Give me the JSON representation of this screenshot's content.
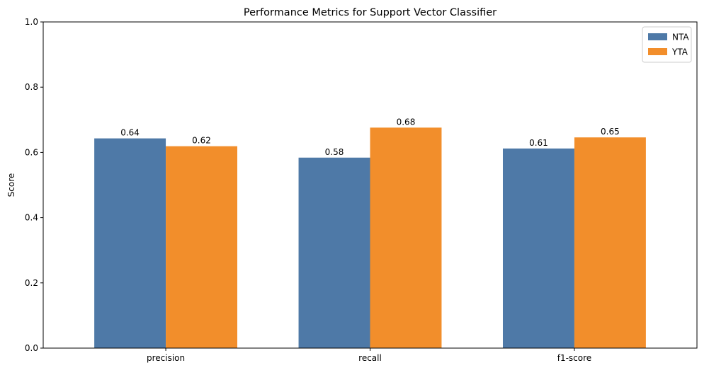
{
  "chart_data": {
    "type": "bar",
    "title": "Performance Metrics for Support Vector Classifier",
    "xlabel": "",
    "ylabel": "Score",
    "ylim": [
      0,
      1
    ],
    "yticks": [
      0.0,
      0.2,
      0.4,
      0.6,
      0.8,
      1.0
    ],
    "ytick_labels": [
      "0.0",
      "0.2",
      "0.4",
      "0.6",
      "0.8",
      "1.0"
    ],
    "categories": [
      "precision",
      "recall",
      "f1-score"
    ],
    "series": [
      {
        "name": "NTA",
        "color": "#4e79a7",
        "values": [
          0.643,
          0.584,
          0.612
        ],
        "labels": [
          "0.64",
          "0.58",
          "0.61"
        ]
      },
      {
        "name": "YTA",
        "color": "#f28e2b",
        "values": [
          0.619,
          0.676,
          0.646
        ],
        "labels": [
          "0.62",
          "0.68",
          "0.65"
        ]
      }
    ],
    "legend_position": "top-right",
    "grid": false
  }
}
